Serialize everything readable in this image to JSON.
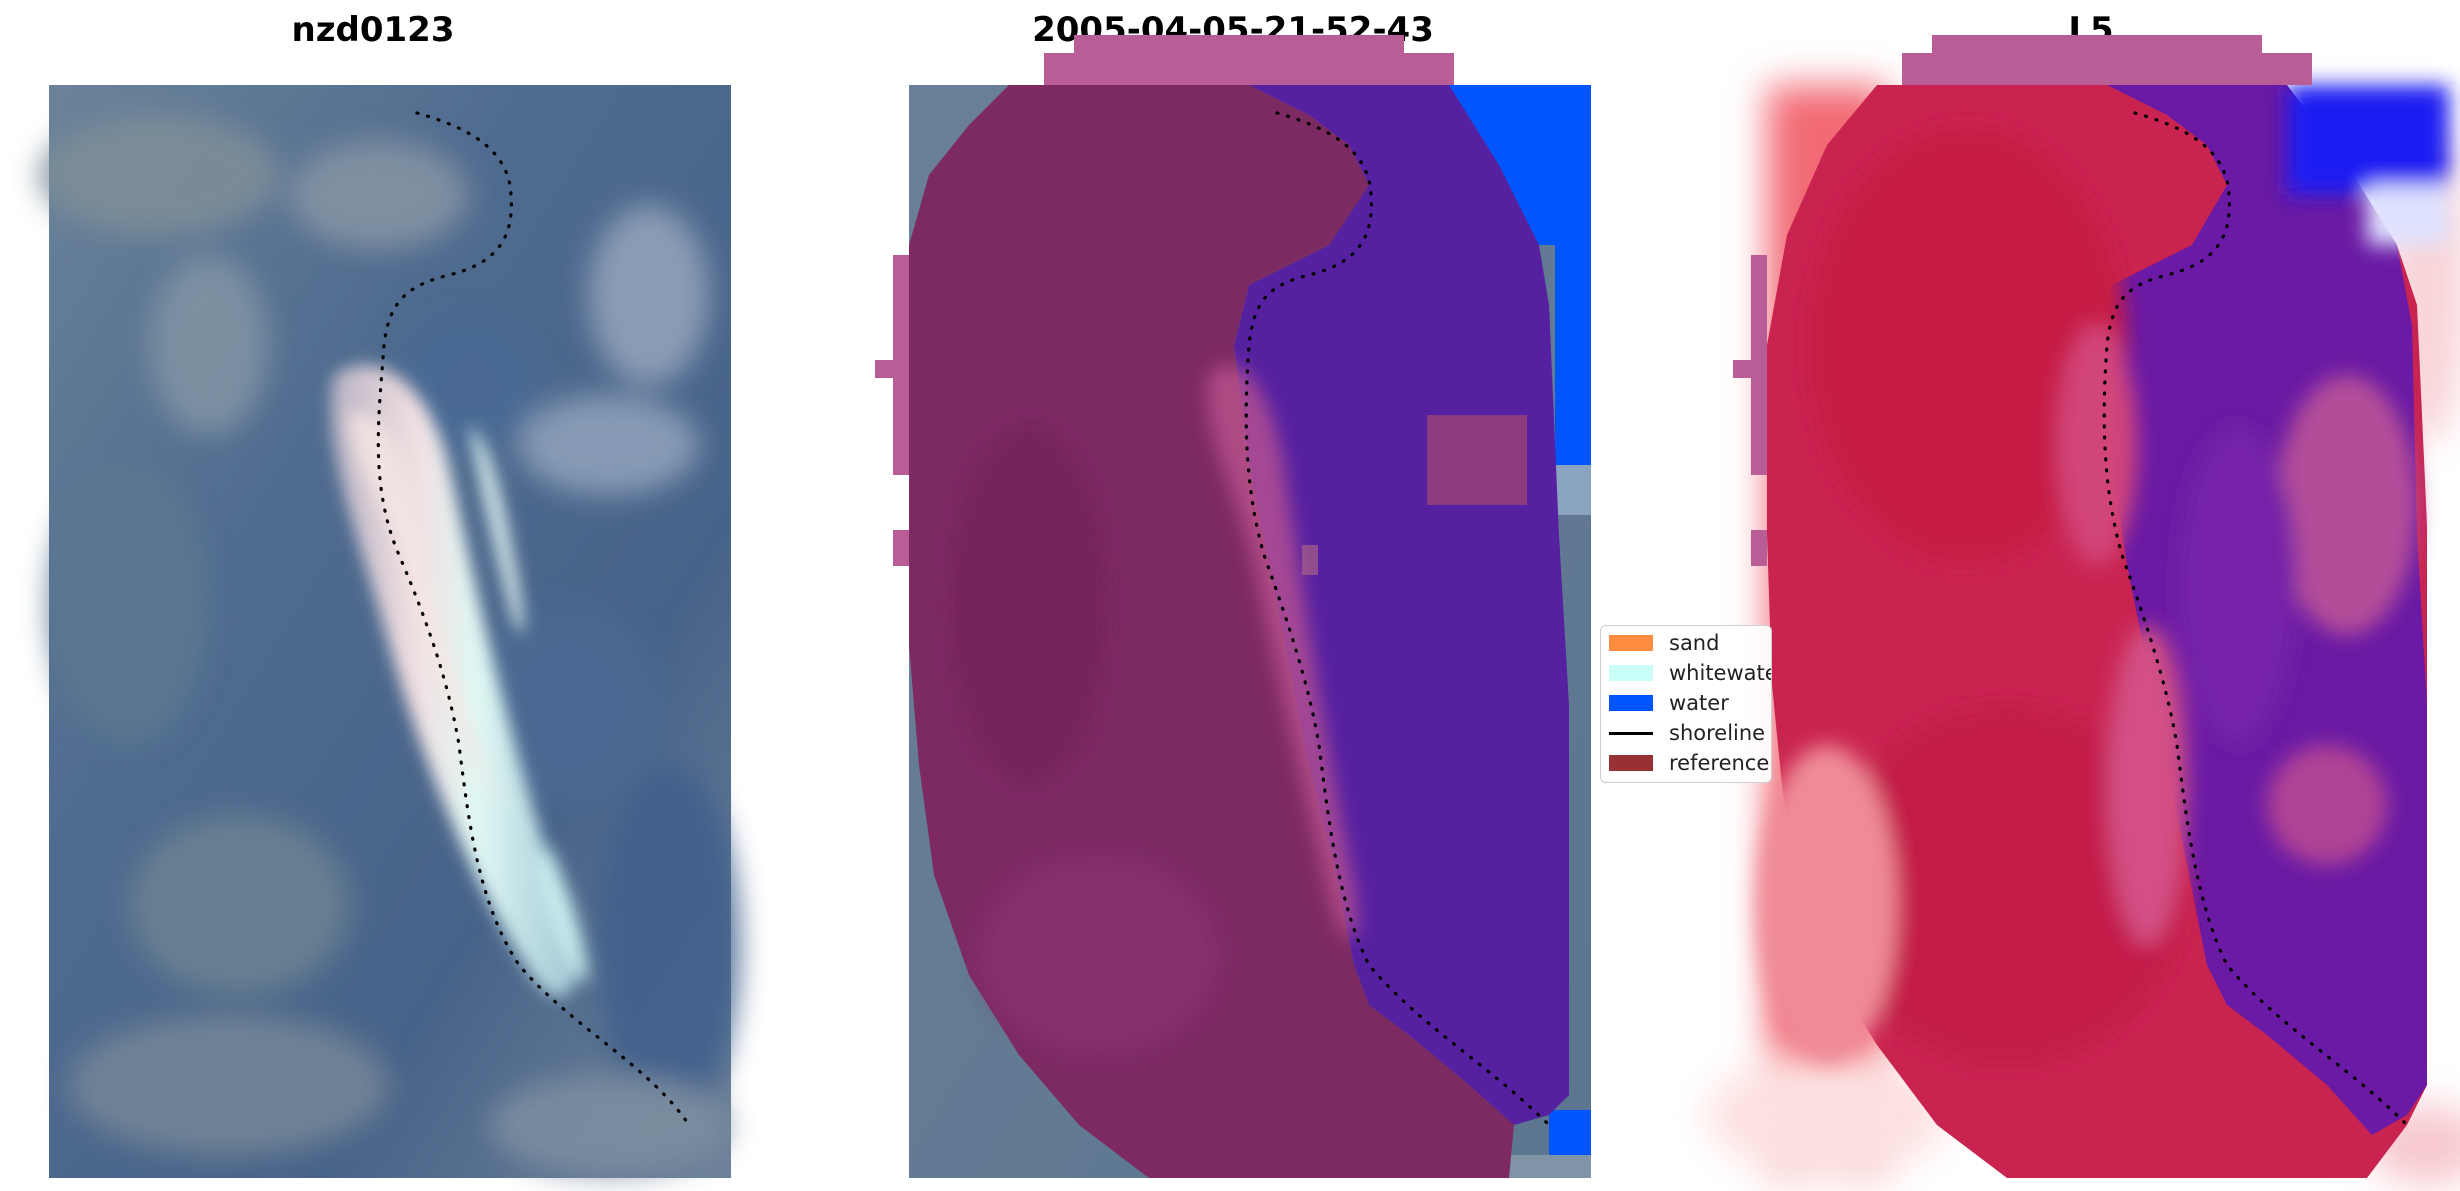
{
  "panels": [
    {
      "title": "nzd0123"
    },
    {
      "title": "2005-04-05-21-52-43"
    },
    {
      "title": "L5"
    }
  ],
  "legend": {
    "items": [
      {
        "label": "sand",
        "color": "#ff8c3f",
        "kind": "patch"
      },
      {
        "label": "whitewater",
        "color": "#c9fff8",
        "kind": "patch"
      },
      {
        "label": "water",
        "color": "#0055ff",
        "kind": "patch"
      },
      {
        "label": "shoreline",
        "color": "#000000",
        "kind": "line"
      },
      {
        "label": "reference",
        "color": "#973134",
        "kind": "patch"
      }
    ]
  },
  "colors": {
    "rgb_water": "#3e5b86",
    "rgb_land": "#6c7f92",
    "classified_land": "#7d2a63",
    "classified_water": "#5621a0",
    "mndwi_land": "#c92450",
    "mndwi_water": "#6a1aa4"
  }
}
